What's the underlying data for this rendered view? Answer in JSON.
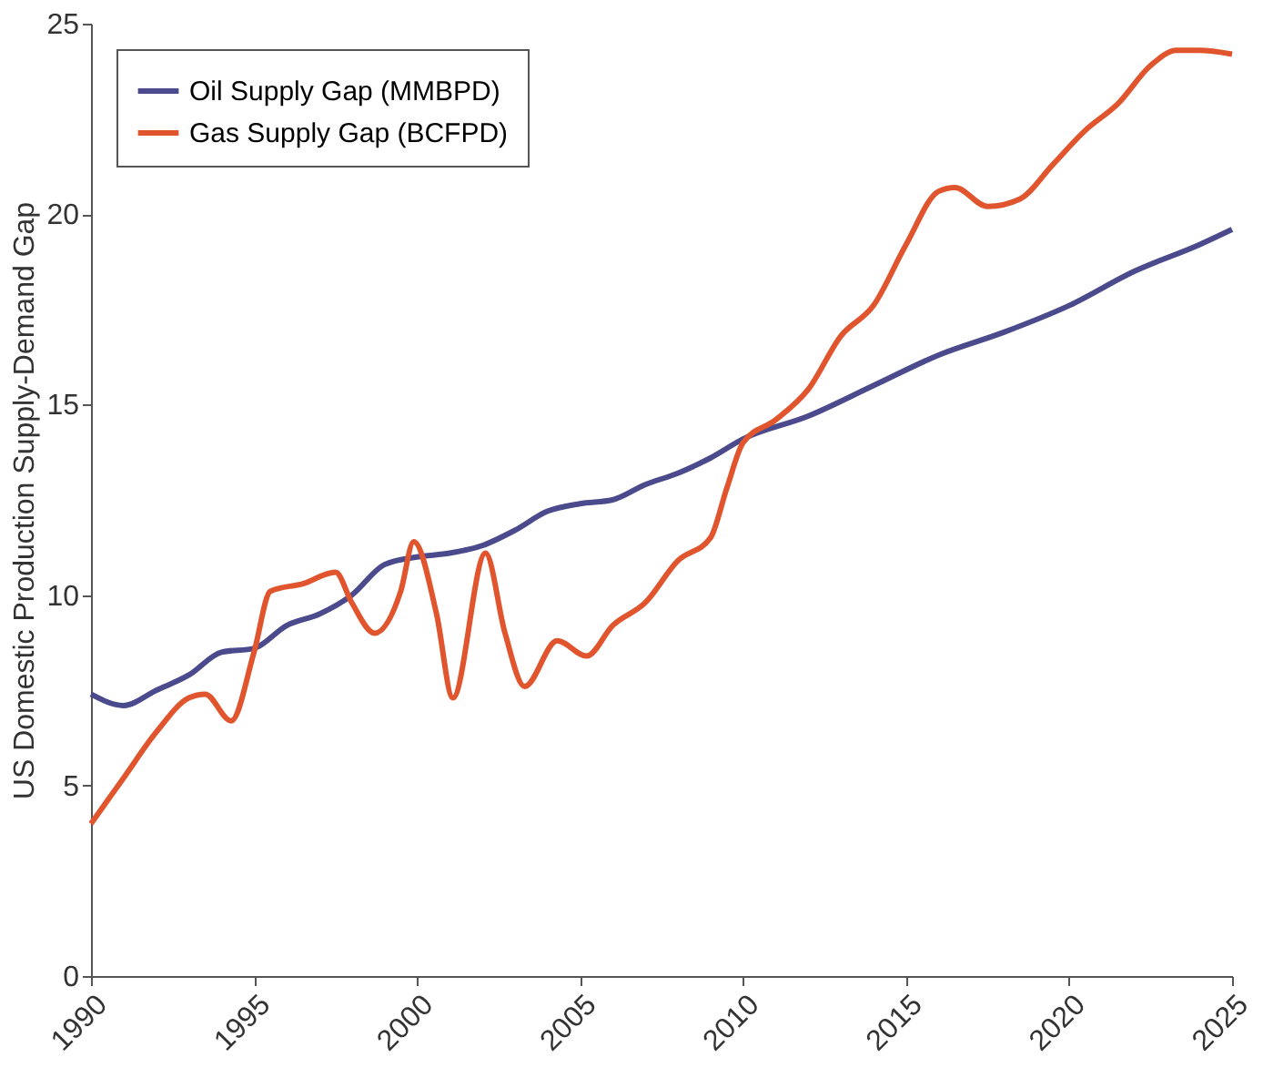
{
  "chart_data": {
    "type": "line",
    "ylabel": "US Domestic Production Supply-Demand Gap",
    "xlim": [
      1990,
      2025
    ],
    "xticks": [
      1990,
      1995,
      2000,
      2005,
      2010,
      2015,
      2020,
      2025
    ],
    "ylim": [
      0,
      25
    ],
    "yticks": [
      0,
      5,
      10,
      15,
      20,
      25
    ],
    "grid": false,
    "legend": "top left",
    "marker": "none",
    "line_style": "solid",
    "series": [
      {
        "name": "Oil Supply Gap (MMBPD)",
        "color": "#4a4a8c",
        "x": [
          1990,
          1991,
          1992,
          1993,
          1994,
          1995,
          1996,
          1997,
          1998,
          1999,
          2000,
          2001,
          2002,
          2003,
          2004,
          2005,
          2006,
          2007,
          2008,
          2009,
          2010,
          2012,
          2014,
          2016,
          2018,
          2020,
          2022,
          2024,
          2025
        ],
        "values": [
          7.4,
          7.1,
          7.5,
          7.9,
          8.5,
          8.6,
          9.2,
          9.5,
          10.0,
          10.8,
          11.0,
          11.1,
          11.3,
          11.7,
          12.2,
          12.4,
          12.5,
          12.9,
          13.2,
          13.6,
          14.1,
          14.7,
          15.5,
          16.3,
          16.9,
          17.6,
          18.5,
          19.2,
          19.6
        ]
      },
      {
        "name": "Gas Supply Gap (BCFPD)",
        "color": "#e0552e",
        "x": [
          1990,
          1991,
          1992,
          1993,
          1993.5,
          1994.3,
          1995,
          1995.5,
          1996.5,
          1997.5,
          1998,
          1998.7,
          1999.5,
          1999.9,
          2000.6,
          2001.1,
          2002.1,
          2002.7,
          2003.3,
          2004.3,
          2005.2,
          2006,
          2007,
          2008,
          2009,
          2009.5,
          2010,
          2011,
          2012,
          2013,
          2014,
          2015,
          2016,
          2016.5,
          2017.5,
          2018.5,
          2019.5,
          2020.5,
          2021.5,
          2022.5,
          2023.3,
          2024,
          2025
        ],
        "values": [
          4.0,
          5.2,
          6.4,
          7.3,
          7.4,
          6.7,
          8.5,
          10.1,
          10.3,
          10.6,
          9.8,
          9.0,
          10.1,
          11.4,
          9.5,
          7.3,
          11.1,
          9.0,
          7.6,
          8.8,
          8.4,
          9.2,
          9.8,
          10.9,
          11.5,
          12.8,
          14.0,
          14.6,
          15.4,
          16.8,
          17.6,
          19.2,
          20.6,
          20.7,
          20.2,
          20.4,
          21.3,
          22.2,
          22.9,
          23.9,
          24.3,
          24.3,
          24.2
        ]
      }
    ]
  }
}
